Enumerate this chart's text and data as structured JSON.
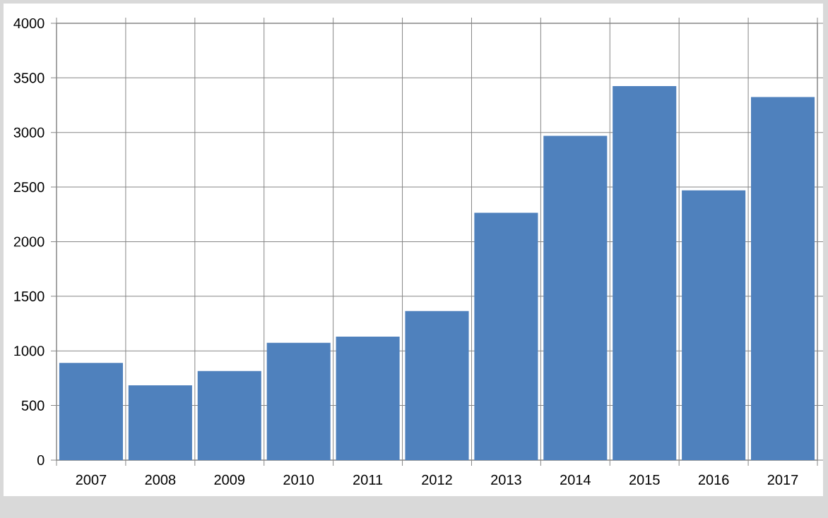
{
  "chart_data": {
    "type": "bar",
    "categories": [
      "2007",
      "2008",
      "2009",
      "2010",
      "2011",
      "2012",
      "2013",
      "2014",
      "2015",
      "2016",
      "2017"
    ],
    "values": [
      890,
      685,
      815,
      1075,
      1130,
      1365,
      2265,
      2970,
      3425,
      2470,
      3325
    ],
    "color": "#4f81bd",
    "ylim": [
      0,
      4000
    ],
    "yticks": [
      0,
      500,
      1000,
      1500,
      2000,
      2500,
      3000,
      3500,
      4000
    ],
    "grid": true
  }
}
